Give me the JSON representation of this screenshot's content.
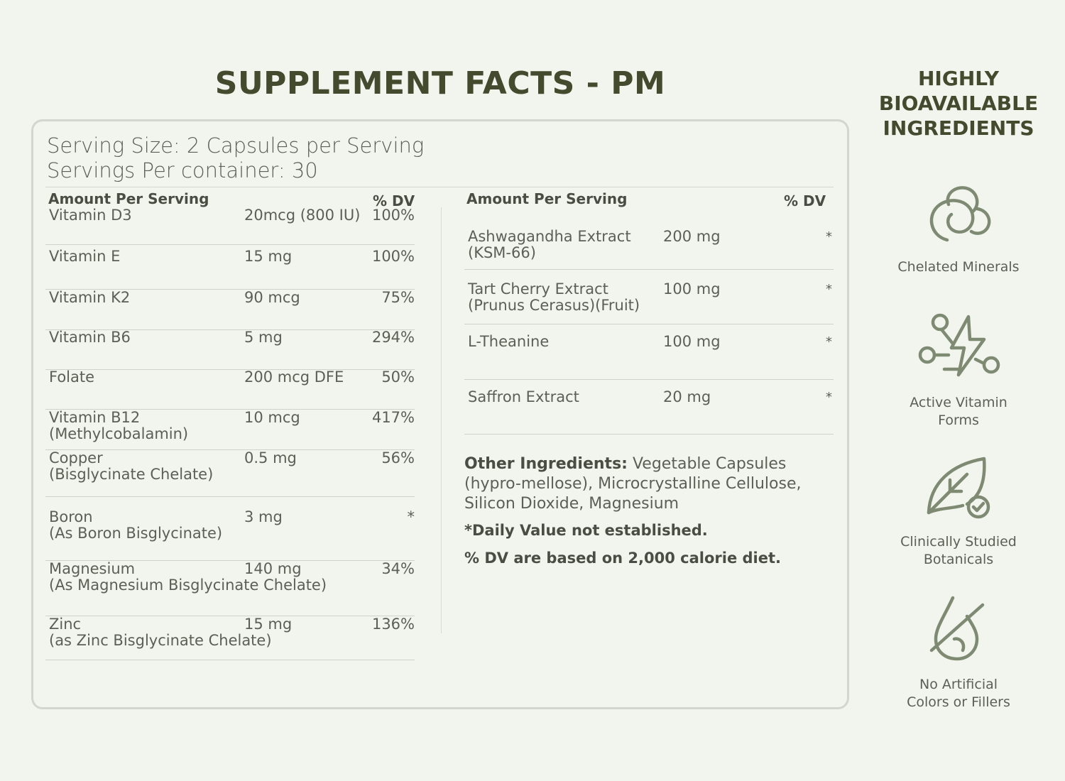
{
  "title": "SUPPLEMENT FACTS - PM",
  "serving": {
    "size": "Serving Size: 2 Capsules per Serving",
    "per_container": "Servings Per container: 30"
  },
  "left_table": {
    "header_amount": "Amount Per Serving",
    "header_dv": "% DV",
    "rows": [
      {
        "name": "Vitamin D3",
        "amount": "20mcg (800 IU)",
        "dv": "100%"
      },
      {
        "name": "Vitamin E",
        "amount": "15 mg",
        "dv": "100%"
      },
      {
        "name": "Vitamin K2",
        "amount": "90 mcg",
        "dv": "75%"
      },
      {
        "name": "Vitamin B6",
        "amount": "5 mg",
        "dv": "294%"
      },
      {
        "name": "Folate",
        "amount": "200 mcg DFE",
        "dv": "50%"
      },
      {
        "name": "Vitamin B12\n(Methylcobalamin)",
        "amount": "10 mcg",
        "dv": "417%"
      },
      {
        "name": "Copper\n(Bisglycinate Chelate)",
        "amount": "0.5 mg",
        "dv": "56%"
      },
      {
        "name": "Boron\n(As Boron Bisglycinate)",
        "amount": "3 mg",
        "dv": "*"
      },
      {
        "name": "Magnesium\n(As Magnesium Bisglycinate Chelate)",
        "amount": "140 mg",
        "dv": "34%"
      },
      {
        "name": "Zinc\n(as Zinc Bisglycinate Chelate)",
        "amount": "15 mg",
        "dv": "136%"
      }
    ]
  },
  "right_table": {
    "header_amount": "Amount Per Serving",
    "header_dv": "% DV",
    "rows": [
      {
        "name": "Ashwagandha Extract\n(KSM-66)",
        "amount": "200 mg",
        "dv": "*"
      },
      {
        "name": "Tart Cherry Extract\n(Prunus Cerasus)(Fruit)",
        "amount": "100 mg",
        "dv": "*"
      },
      {
        "name": "L-Theanine",
        "amount": "100 mg",
        "dv": "*"
      },
      {
        "name": "Saffron Extract",
        "amount": "20 mg",
        "dv": "*"
      }
    ]
  },
  "other_ingredients": {
    "label": "Other Ingredients:",
    "text": " Vegetable Capsules (hypro-mellose), Microcrystalline Cellulose, Silicon Dioxide, Magnesium"
  },
  "notes": {
    "daily_value": "*Daily Value not established.",
    "calorie": "% DV are based on 2,000 calorie diet."
  },
  "sidebar": {
    "title": "HIGHLY BIOAVAILABLE INGREDIENTS",
    "features": [
      {
        "icon": "chelated-minerals-icon",
        "label": "Chelated Minerals"
      },
      {
        "icon": "active-vitamin-icon",
        "label": "Active Vitamin\nForms"
      },
      {
        "icon": "leaf-check-icon",
        "label": "Clinically Studied\nBotanicals"
      },
      {
        "icon": "no-color-drop-icon",
        "label": "No Artificial\nColors or Fillers"
      }
    ]
  },
  "colors": {
    "background": "#f2f4ee",
    "title": "#434a2d",
    "icon": "#7f8a73",
    "border": "#d3d5cf"
  }
}
